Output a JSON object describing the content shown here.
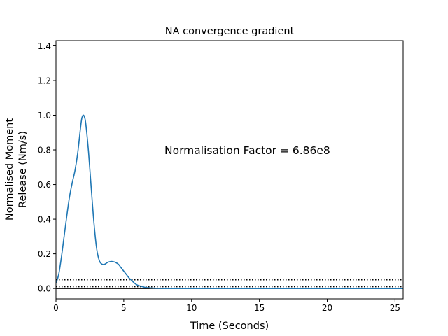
{
  "chart_data": {
    "type": "line",
    "title": "NA convergence gradient",
    "xlabel": "Time (Seconds)",
    "ylabel_lines": [
      "Normalised Moment",
      "Release (Nm/s)"
    ],
    "xlim": [
      0,
      25.6
    ],
    "ylim": [
      -0.06,
      1.43
    ],
    "xticks": [
      0,
      5,
      10,
      15,
      20,
      25
    ],
    "xtick_labels": [
      "0",
      "5",
      "10",
      "15",
      "20",
      "25"
    ],
    "yticks": [
      0.0,
      0.2,
      0.4,
      0.6,
      0.8,
      1.0,
      1.2,
      1.4
    ],
    "ytick_labels": [
      "0.0",
      "0.2",
      "0.4",
      "0.6",
      "0.8",
      "1.0",
      "1.2",
      "1.4"
    ],
    "grid": false,
    "annotation": {
      "text": "Normalisation Factor = 6.86e8",
      "x": 8.0,
      "y": 0.8
    },
    "series": [
      {
        "color": "#1f77b4",
        "x": [
          0.0,
          0.2,
          0.4,
          0.6,
          0.8,
          1.0,
          1.2,
          1.4,
          1.6,
          1.8,
          1.9,
          2.0,
          2.1,
          2.2,
          2.4,
          2.6,
          2.8,
          3.0,
          3.2,
          3.4,
          3.6,
          3.8,
          4.0,
          4.2,
          4.4,
          4.6,
          4.8,
          5.0,
          5.2,
          5.4,
          5.6,
          5.8,
          6.0,
          6.3,
          6.6,
          7.0,
          7.5,
          8.0,
          9.0,
          10.0,
          12.0,
          15.0,
          20.0,
          25.6
        ],
        "y": [
          0.03,
          0.08,
          0.18,
          0.3,
          0.42,
          0.53,
          0.61,
          0.68,
          0.78,
          0.92,
          0.98,
          1.0,
          0.99,
          0.95,
          0.79,
          0.58,
          0.38,
          0.23,
          0.16,
          0.14,
          0.14,
          0.15,
          0.155,
          0.155,
          0.15,
          0.14,
          0.12,
          0.1,
          0.08,
          0.06,
          0.045,
          0.03,
          0.02,
          0.012,
          0.006,
          0.003,
          0.001,
          0.0,
          0.0,
          0.0,
          0.0,
          0.0,
          0.0,
          0.0
        ]
      }
    ],
    "reference_lines": [
      {
        "y": 0.05,
        "style": "dotted",
        "color": "#000000"
      },
      {
        "y": 0.01,
        "style": "dotted",
        "color": "#000000"
      },
      {
        "y": 0.0,
        "style": "solid",
        "color": "#000000"
      }
    ]
  }
}
